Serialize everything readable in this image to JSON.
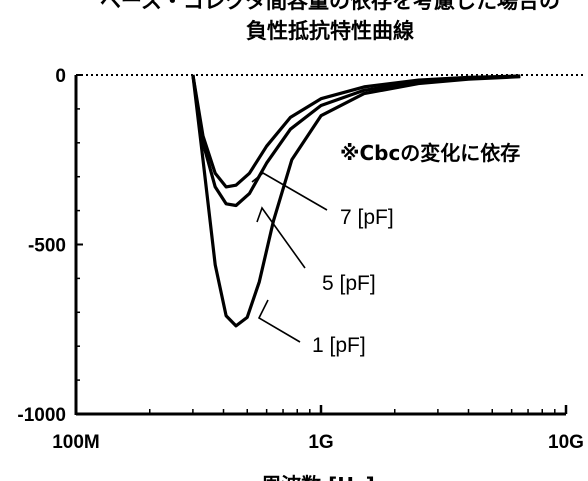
{
  "header": {
    "title_line1": "ベース・コレクタ間容量の依存を考慮した場合の",
    "title_line2": "負性抵抗特性曲線"
  },
  "annotation": "※Cbcの変化に依存",
  "chart_data": {
    "type": "line",
    "title": "ベース・コレクタ間容量の依存を考慮した場合の 負性抵抗特性曲線",
    "xlabel": "周波数 [Hz]",
    "ylabel": "",
    "x_scale": "log",
    "xlim": [
      100000000,
      10000000000
    ],
    "ylim": [
      -1000,
      0
    ],
    "x_ticks": [
      {
        "value": 100000000,
        "label": "100M"
      },
      {
        "value": 1000000000,
        "label": "1G"
      },
      {
        "value": 10000000000,
        "label": "10G"
      }
    ],
    "y_ticks": [
      {
        "value": 0,
        "label": "0"
      },
      {
        "value": -500,
        "label": "-500"
      },
      {
        "value": -1000,
        "label": "-1000"
      }
    ],
    "zero_line": "dotted",
    "series": [
      {
        "name": "1 [pF]",
        "points": [
          [
            300000000,
            0
          ],
          [
            330000000,
            -250
          ],
          [
            370000000,
            -560
          ],
          [
            410000000,
            -710
          ],
          [
            450000000,
            -740
          ],
          [
            500000000,
            -715
          ],
          [
            560000000,
            -610
          ],
          [
            640000000,
            -430
          ],
          [
            760000000,
            -250
          ],
          [
            1000000000,
            -120
          ],
          [
            1500000000,
            -55
          ],
          [
            2500000000,
            -25
          ],
          [
            4000000000,
            -12
          ],
          [
            6500000000,
            -5
          ]
        ]
      },
      {
        "name": "5 [pF]",
        "points": [
          [
            300000000,
            0
          ],
          [
            330000000,
            -200
          ],
          [
            370000000,
            -330
          ],
          [
            410000000,
            -380
          ],
          [
            450000000,
            -385
          ],
          [
            510000000,
            -350
          ],
          [
            600000000,
            -260
          ],
          [
            750000000,
            -160
          ],
          [
            1000000000,
            -90
          ],
          [
            1500000000,
            -45
          ],
          [
            2500000000,
            -20
          ],
          [
            4000000000,
            -10
          ],
          [
            6500000000,
            -4
          ]
        ]
      },
      {
        "name": "7 [pF]",
        "points": [
          [
            300000000,
            0
          ],
          [
            330000000,
            -180
          ],
          [
            370000000,
            -290
          ],
          [
            410000000,
            -330
          ],
          [
            450000000,
            -325
          ],
          [
            510000000,
            -290
          ],
          [
            600000000,
            -210
          ],
          [
            750000000,
            -125
          ],
          [
            1000000000,
            -70
          ],
          [
            1500000000,
            -35
          ],
          [
            2500000000,
            -15
          ],
          [
            4000000000,
            -7
          ],
          [
            6500000000,
            -3
          ]
        ]
      }
    ]
  }
}
